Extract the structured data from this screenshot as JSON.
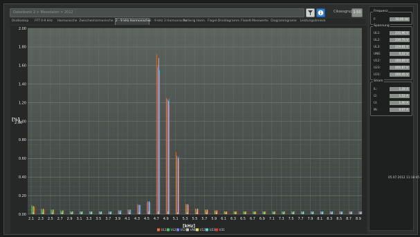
{
  "toolbar": {
    "file_path": "Datenbank 2 > Messdaten > 2012",
    "filter_icon": "filter-icon",
    "info_icon": "info-icon",
    "ci_label": "Cikassgruppe:",
    "ci_value": "1-50"
  },
  "tabs": [
    "Oszilloskop",
    "FFT 0-9 kHz",
    "Harmonische",
    "Zwischenharmonische",
    "2 - 9 kHz Harmonische",
    "2 - 9 kHz 3 Harmonische",
    "Rollierig Harm.",
    "Flagel-Dreidiagramm",
    "Flakelt-Messwerte",
    "Diagrammgrame",
    "Leistungsdreieck"
  ],
  "active_tab": 4,
  "frequency": {
    "title": "Frequenz",
    "rows": [
      {
        "label": "F:",
        "value": "50.00 Hz"
      }
    ]
  },
  "voltage": {
    "title": "Spannung",
    "rows": [
      {
        "label": "UL1:",
        "value": "231.96 V"
      },
      {
        "label": "UL2:",
        "value": "230.75 V"
      },
      {
        "label": "UL3:",
        "value": "229.81 V"
      },
      {
        "label": "UNE:",
        "value": "0.22 V"
      },
      {
        "label": "U12:",
        "value": "400.69 V"
      },
      {
        "label": "U23:",
        "value": "400.87 V"
      },
      {
        "label": "U31:",
        "value": "400.45 V"
      }
    ]
  },
  "current": {
    "title": "Strom",
    "rows": [
      {
        "label": "IL:",
        "value": "1.28 A"
      },
      {
        "label": "I2:",
        "value": "1.52 A"
      },
      {
        "label": "I3:",
        "value": "1.40 A"
      },
      {
        "label": "IN:",
        "value": "0.07 A"
      }
    ]
  },
  "datetime": "05.07.2012 11:18:45",
  "chart_data": {
    "type": "bar",
    "title": "",
    "xlabel": "[kHz]",
    "ylabel": "[%]",
    "ylim": [
      0,
      2.0
    ],
    "y_ticks": [
      "0.00",
      "0.20",
      "0.40",
      "0.60",
      "0.80",
      "1.00",
      "1.20",
      "1.40",
      "1.60",
      "1.80",
      "2.00"
    ],
    "y_axis_mid_label": "2.00",
    "categories": [
      "2.1",
      "2.3",
      "2.5",
      "2.7",
      "2.9",
      "3.1",
      "3.3",
      "3.5",
      "3.7",
      "3.9",
      "4.1",
      "4.3",
      "4.5",
      "4.7",
      "4.9",
      "5.1",
      "5.3",
      "5.5",
      "5.7",
      "5.9",
      "6.1",
      "6.3",
      "6.5",
      "6.7",
      "6.9",
      "7.1",
      "7.3",
      "7.5",
      "7.7",
      "7.9",
      "8.1",
      "8.3",
      "8.5",
      "8.7",
      "8.9"
    ],
    "series": [
      {
        "name": "UL1",
        "color": "#ff6a1a",
        "values": [
          0.1,
          0.06,
          0.05,
          0.04,
          0.03,
          0.03,
          0.03,
          0.03,
          0.03,
          0.04,
          0.05,
          0.11,
          0.13,
          1.72,
          1.25,
          0.67,
          0.11,
          0.06,
          0.05,
          0.04,
          0.03,
          0.03,
          0.03,
          0.03,
          0.03,
          0.03,
          0.03,
          0.03,
          0.03,
          0.03,
          0.03,
          0.03,
          0.03,
          0.03,
          0.03
        ]
      },
      {
        "name": "UL2",
        "color": "#39d353",
        "values": [
          0.09,
          0.05,
          0.05,
          0.04,
          0.03,
          0.03,
          0.03,
          0.03,
          0.03,
          0.04,
          0.05,
          0.1,
          0.14,
          1.58,
          1.24,
          0.63,
          0.11,
          0.06,
          0.05,
          0.04,
          0.03,
          0.03,
          0.03,
          0.03,
          0.03,
          0.03,
          0.03,
          0.03,
          0.03,
          0.03,
          0.03,
          0.03,
          0.03,
          0.03,
          0.03
        ]
      },
      {
        "name": "UL3",
        "color": "#6f7dff",
        "values": [
          0.08,
          0.05,
          0.04,
          0.03,
          0.03,
          0.03,
          0.03,
          0.03,
          0.03,
          0.04,
          0.04,
          0.1,
          0.13,
          1.6,
          1.23,
          0.62,
          0.1,
          0.05,
          0.04,
          0.04,
          0.03,
          0.03,
          0.03,
          0.03,
          0.03,
          0.03,
          0.03,
          0.03,
          0.03,
          0.03,
          0.03,
          0.03,
          0.03,
          0.03,
          0.03
        ]
      },
      {
        "name": "UNE",
        "color": "#c7c7c7",
        "values": [
          0.02,
          0.02,
          0.02,
          0.02,
          0.02,
          0.02,
          0.02,
          0.02,
          0.02,
          0.02,
          0.02,
          0.02,
          0.03,
          0.03,
          0.03,
          0.02,
          0.02,
          0.02,
          0.02,
          0.02,
          0.02,
          0.02,
          0.02,
          0.02,
          0.02,
          0.02,
          0.02,
          0.02,
          0.02,
          0.02,
          0.02,
          0.02,
          0.02,
          0.02,
          0.02
        ]
      },
      {
        "name": "U12",
        "color": "#f2e64a",
        "values": [
          0.09,
          0.06,
          0.05,
          0.04,
          0.03,
          0.03,
          0.03,
          0.03,
          0.03,
          0.04,
          0.05,
          0.1,
          0.14,
          1.68,
          1.22,
          0.6,
          0.11,
          0.06,
          0.05,
          0.04,
          0.03,
          0.03,
          0.03,
          0.03,
          0.03,
          0.03,
          0.03,
          0.03,
          0.03,
          0.03,
          0.03,
          0.03,
          0.03,
          0.03,
          0.03
        ]
      },
      {
        "name": "U23",
        "color": "#56d6e0",
        "values": [
          0.08,
          0.05,
          0.05,
          0.04,
          0.03,
          0.03,
          0.03,
          0.03,
          0.03,
          0.04,
          0.05,
          0.1,
          0.13,
          1.55,
          1.24,
          0.62,
          0.1,
          0.06,
          0.05,
          0.04,
          0.03,
          0.03,
          0.03,
          0.03,
          0.03,
          0.03,
          0.03,
          0.03,
          0.03,
          0.03,
          0.03,
          0.03,
          0.03,
          0.03,
          0.03
        ]
      },
      {
        "name": "U31",
        "color": "#e03a2e",
        "values": [
          0.08,
          0.05,
          0.04,
          0.04,
          0.03,
          0.03,
          0.03,
          0.03,
          0.03,
          0.04,
          0.04,
          0.1,
          0.12,
          1.5,
          1.18,
          0.59,
          0.1,
          0.05,
          0.04,
          0.04,
          0.03,
          0.03,
          0.03,
          0.03,
          0.03,
          0.03,
          0.03,
          0.03,
          0.03,
          0.03,
          0.03,
          0.03,
          0.03,
          0.03,
          0.03
        ]
      }
    ],
    "grid": true,
    "legend_position": "bottom-center"
  }
}
